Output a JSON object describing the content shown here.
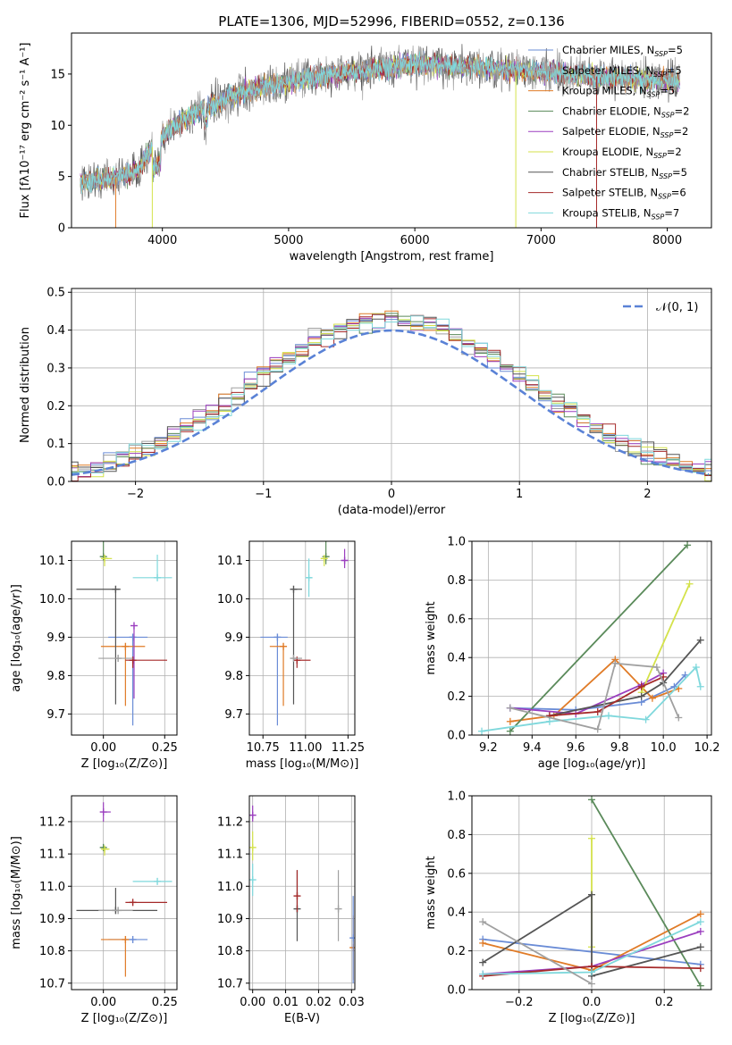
{
  "figure": {
    "title": "PLATE=1306, MJD=52996, FIBERID=0552, z=0.136"
  },
  "models": [
    {
      "name": "Chabrier MILES",
      "nssp": "5",
      "color": "#6a8cd6"
    },
    {
      "name": "Salpeter MILES",
      "nssp": "5",
      "color": "#a0a0a0"
    },
    {
      "name": "Kroupa MILES",
      "nssp": "5",
      "color": "#e07b27"
    },
    {
      "name": "Chabrier ELODIE",
      "nssp": "2",
      "color": "#5a8a5a"
    },
    {
      "name": "Salpeter ELODIE",
      "nssp": "2",
      "color": "#9b3fbf"
    },
    {
      "name": "Kroupa ELODIE",
      "nssp": "2",
      "color": "#d4e24a"
    },
    {
      "name": "Chabrier STELIB",
      "nssp": "5",
      "color": "#555555"
    },
    {
      "name": "Salpeter STELIB",
      "nssp": "6",
      "color": "#a52a2a"
    },
    {
      "name": "Kroupa STELIB",
      "nssp": "7",
      "color": "#7fd8dc"
    }
  ],
  "chart_data": [
    {
      "id": "spectrum",
      "type": "line",
      "xlabel": "wavelength [Angstrom, rest frame]",
      "ylabel": "Flux [fλ10⁻¹⁷ erg cm⁻² s⁻¹ A⁻¹]",
      "xlim": [
        3280,
        8350
      ],
      "ylim": [
        0,
        19
      ],
      "xticks": [
        4000,
        5000,
        6000,
        7000,
        8000
      ],
      "yticks": [
        0,
        5,
        10,
        15
      ],
      "grid": false,
      "legend": "right",
      "continuum": {
        "x": [
          3350,
          3600,
          3800,
          3950,
          4100,
          4300,
          4500,
          4700,
          4900,
          5100,
          5400,
          5700,
          6000,
          6300,
          6600,
          6900,
          7200,
          7500,
          7800,
          8100
        ],
        "y": [
          4.5,
          4.8,
          5.5,
          8.5,
          10.0,
          11.5,
          12.5,
          13.5,
          14.0,
          14.5,
          15.0,
          15.5,
          16.0,
          15.8,
          15.5,
          15.3,
          15.0,
          14.7,
          14.5,
          14.3
        ]
      },
      "dropouts": [
        {
          "x": 3630,
          "y_low": 0,
          "model": 2
        },
        {
          "x": 3920,
          "y_low": 0,
          "model": 5
        },
        {
          "x": 6800,
          "y_low": 0,
          "model": 5
        },
        {
          "x": 7440,
          "y_low": 0,
          "model": 7
        }
      ]
    },
    {
      "id": "residuals",
      "type": "histogram",
      "xlabel": "(data-model)/error",
      "ylabel": "Normed distribution",
      "xlim": [
        -2.5,
        2.5
      ],
      "ylim": [
        0,
        0.51
      ],
      "xticks": [
        -2,
        -1,
        0,
        1,
        2
      ],
      "yticks": [
        0.0,
        0.1,
        0.2,
        0.3,
        0.4,
        0.5
      ],
      "grid": true,
      "legend": "top-right",
      "reference": {
        "name": "𝒩(0, 1)",
        "mean": 0,
        "sigma": 1,
        "color": "#5a82d6"
      },
      "bin_width": 0.1
    },
    {
      "id": "age-vs-Z",
      "type": "scatter",
      "xlabel": "Z [log₁₀(Z/Z⊙)]",
      "ylabel": "age  [log₁₀(age/yr)]",
      "xlim": [
        -0.13,
        0.3
      ],
      "ylim": [
        9.645,
        10.15
      ],
      "xticks": [
        0.0,
        0.25
      ],
      "yticks": [
        9.7,
        9.8,
        9.9,
        10.0,
        10.1
      ],
      "grid": true,
      "points": [
        {
          "model": 0,
          "x": 0.12,
          "y": 9.9,
          "xerr": [
            0.1,
            0.06
          ],
          "yerr": [
            0.23,
            0.0
          ]
        },
        {
          "model": 2,
          "x": 0.09,
          "y": 9.876,
          "xerr": [
            0.1,
            0.08
          ],
          "yerr": [
            0.155,
            0.0
          ]
        },
        {
          "model": 3,
          "x": 0.0,
          "y": 10.11,
          "xerr": [
            0.01,
            0.01
          ],
          "yerr": [
            0.01,
            0.04
          ]
        },
        {
          "model": 4,
          "x": 0.125,
          "y": 9.93,
          "xerr": [
            0.0,
            0.0
          ],
          "yerr": [
            0.19,
            0.0
          ]
        },
        {
          "model": 5,
          "x": 0.005,
          "y": 10.105,
          "xerr": [
            0.01,
            0.03
          ],
          "yerr": [
            0.02,
            0.01
          ]
        },
        {
          "model": 6,
          "x": 0.05,
          "y": 10.025,
          "xerr": [
            0.16,
            0.02
          ],
          "yerr": [
            0.3,
            0.0
          ]
        },
        {
          "model": 7,
          "x": 0.12,
          "y": 9.84,
          "xerr": [
            0.03,
            0.14
          ],
          "yerr": [
            0.02,
            0.0
          ]
        },
        {
          "model": 8,
          "x": 0.22,
          "y": 10.055,
          "xerr": [
            0.1,
            0.06
          ],
          "yerr": [
            0.0,
            0.06
          ]
        },
        {
          "model": 1,
          "x": 0.06,
          "y": 9.845,
          "xerr": [
            0.08,
            0.06
          ],
          "yerr": [
            0.0,
            0.0
          ]
        }
      ]
    },
    {
      "id": "age-vs-mass",
      "type": "scatter",
      "xlabel": "mass [log₁₀(M/M⊙)]",
      "ylabel": "",
      "xlim": [
        10.67,
        11.29
      ],
      "ylim": [
        9.645,
        10.15
      ],
      "xticks": [
        10.75,
        11.0,
        11.25
      ],
      "yticks": [
        9.7,
        9.8,
        9.9,
        10.0,
        10.1
      ],
      "grid": true,
      "points": [
        {
          "model": 0,
          "x": 10.835,
          "y": 9.9,
          "xerr": [
            0.1,
            0.06
          ],
          "yerr": [
            0.23,
            0.0
          ]
        },
        {
          "model": 2,
          "x": 10.87,
          "y": 9.876,
          "xerr": [
            0.08,
            0.0
          ],
          "yerr": [
            0.155,
            0.0
          ]
        },
        {
          "model": 3,
          "x": 11.12,
          "y": 10.11,
          "xerr": [
            0.0,
            0.0
          ],
          "yerr": [
            0.02,
            0.04
          ]
        },
        {
          "model": 4,
          "x": 11.23,
          "y": 10.1,
          "xerr": [
            0.02,
            0.02
          ],
          "yerr": [
            0.02,
            0.03
          ]
        },
        {
          "model": 5,
          "x": 11.11,
          "y": 10.105,
          "xerr": [
            0.0,
            0.02
          ],
          "yerr": [
            0.02,
            0.0
          ]
        },
        {
          "model": 6,
          "x": 10.93,
          "y": 10.025,
          "xerr": [
            0.0,
            0.05
          ],
          "yerr": [
            0.3,
            0.0
          ]
        },
        {
          "model": 7,
          "x": 10.95,
          "y": 9.84,
          "xerr": [
            0.0,
            0.08
          ],
          "yerr": [
            0.02,
            0.0
          ]
        },
        {
          "model": 8,
          "x": 11.02,
          "y": 10.055,
          "xerr": [
            0.02,
            0.02
          ],
          "yerr": [
            0.05,
            0.05
          ]
        },
        {
          "model": 1,
          "x": 10.93,
          "y": 9.845,
          "xerr": [
            0.0,
            0.05
          ],
          "yerr": [
            0.0,
            0.0
          ]
        }
      ]
    },
    {
      "id": "weight-vs-age",
      "type": "line",
      "xlabel": "age  [log₁₀(age/yr)]",
      "ylabel": "mass weight",
      "xlim": [
        9.125,
        10.22
      ],
      "ylim": [
        0,
        1.0
      ],
      "xticks": [
        9.2,
        9.4,
        9.6,
        9.8,
        10.0,
        10.2
      ],
      "yticks": [
        0.0,
        0.2,
        0.4,
        0.6,
        0.8,
        1.0
      ],
      "grid": true,
      "series": [
        {
          "model": 0,
          "x": [
            9.3,
            9.6,
            9.9,
            10.05,
            10.1
          ],
          "y": [
            0.14,
            0.13,
            0.17,
            0.25,
            0.31
          ]
        },
        {
          "model": 2,
          "x": [
            9.3,
            9.5,
            9.78,
            9.95,
            10.07
          ],
          "y": [
            0.07,
            0.1,
            0.39,
            0.19,
            0.24
          ]
        },
        {
          "model": 3,
          "x": [
            9.3,
            10.11
          ],
          "y": [
            0.02,
            0.98
          ]
        },
        {
          "model": 4,
          "x": [
            9.3,
            9.6,
            9.9,
            10.0
          ],
          "y": [
            0.14,
            0.11,
            0.26,
            0.32
          ]
        },
        {
          "model": 5,
          "x": [
            9.9,
            10.12
          ],
          "y": [
            0.22,
            0.78
          ]
        },
        {
          "model": 6,
          "x": [
            9.48,
            9.9,
            10.0,
            10.17
          ],
          "y": [
            0.1,
            0.2,
            0.27,
            0.49
          ]
        },
        {
          "model": 7,
          "x": [
            9.48,
            9.7,
            9.9,
            10.0
          ],
          "y": [
            0.1,
            0.12,
            0.25,
            0.3
          ]
        },
        {
          "model": 8,
          "x": [
            9.17,
            9.48,
            9.75,
            9.92,
            10.15,
            10.17
          ],
          "y": [
            0.02,
            0.07,
            0.1,
            0.08,
            0.35,
            0.25
          ]
        },
        {
          "model": 1,
          "x": [
            9.3,
            9.7,
            9.78,
            9.97,
            10.07
          ],
          "y": [
            0.14,
            0.03,
            0.37,
            0.35,
            0.09
          ]
        }
      ]
    },
    {
      "id": "mass-vs-Z",
      "type": "scatter",
      "xlabel": "Z [log₁₀(Z/Z⊙)]",
      "ylabel": "mass [log₁₀(M/M⊙)]",
      "xlim": [
        -0.13,
        0.3
      ],
      "ylim": [
        10.68,
        11.28
      ],
      "xticks": [
        0.0,
        0.25
      ],
      "yticks": [
        10.7,
        10.8,
        10.9,
        11.0,
        11.1,
        11.2
      ],
      "grid": true,
      "points": [
        {
          "model": 0,
          "x": 0.12,
          "y": 10.835,
          "xerr": [
            0.1,
            0.06
          ],
          "yerr": [
            0.0,
            0.0
          ]
        },
        {
          "model": 2,
          "x": 0.09,
          "y": 10.835,
          "xerr": [
            0.1,
            0.0
          ],
          "yerr": [
            0.115,
            0.0
          ]
        },
        {
          "model": 3,
          "x": 0.0,
          "y": 11.12,
          "xerr": [
            0.01,
            0.01
          ],
          "yerr": [
            0.0,
            0.0
          ]
        },
        {
          "model": 4,
          "x": 0.0,
          "y": 11.23,
          "xerr": [
            0.0,
            0.03
          ],
          "yerr": [
            0.03,
            0.03
          ]
        },
        {
          "model": 5,
          "x": 0.005,
          "y": 11.115,
          "xerr": [
            0.01,
            0.02
          ],
          "yerr": [
            0.02,
            0.0
          ]
        },
        {
          "model": 6,
          "x": 0.05,
          "y": 10.925,
          "xerr": [
            0.16,
            0.17
          ],
          "yerr": [
            0.0,
            0.07
          ]
        },
        {
          "model": 7,
          "x": 0.12,
          "y": 10.95,
          "xerr": [
            0.03,
            0.14
          ],
          "yerr": [
            0.0,
            0.0
          ]
        },
        {
          "model": 8,
          "x": 0.22,
          "y": 11.015,
          "xerr": [
            0.1,
            0.06
          ],
          "yerr": [
            0.0,
            0.0
          ]
        },
        {
          "model": 1,
          "x": 0.06,
          "y": 10.925,
          "xerr": [
            0.08,
            0.06
          ],
          "yerr": [
            0.0,
            0.0
          ]
        }
      ]
    },
    {
      "id": "mass-vs-EBV",
      "type": "scatter",
      "xlabel": "E(B-V)",
      "ylabel": "",
      "xlim": [
        -0.001,
        0.031
      ],
      "ylim": [
        10.68,
        11.28
      ],
      "xticks": [
        0.0,
        0.01,
        0.02,
        0.03
      ],
      "yticks": [
        10.7,
        10.8,
        10.9,
        11.0,
        11.1,
        11.2
      ],
      "grid": true,
      "points": [
        {
          "model": 6,
          "x": 0.0135,
          "y": 10.93,
          "xerr": [
            0.0,
            0.0
          ],
          "yerr": [
            0.1,
            0.12
          ]
        },
        {
          "model": 7,
          "x": 0.0135,
          "y": 10.97,
          "xerr": [
            0.0,
            0.0
          ],
          "yerr": [
            0.05,
            0.08
          ]
        },
        {
          "model": 1,
          "x": 0.026,
          "y": 10.93,
          "xerr": [
            0.0,
            0.0
          ],
          "yerr": [
            0.1,
            0.12
          ]
        },
        {
          "model": 2,
          "x": 0.0305,
          "y": 10.81,
          "xerr": [
            0.0,
            0.0
          ],
          "yerr": [
            0.1,
            0.1
          ]
        },
        {
          "model": 0,
          "x": 0.0305,
          "y": 10.84,
          "xerr": [
            0.0,
            0.0
          ],
          "yerr": [
            0.14,
            0.13
          ]
        },
        {
          "model": 4,
          "x": 0.0,
          "y": 11.22,
          "xerr": [
            0.0,
            0.0
          ],
          "yerr": [
            0.02,
            0.03
          ]
        },
        {
          "model": 5,
          "x": 0.0,
          "y": 11.12,
          "xerr": [
            0.0,
            0.0
          ],
          "yerr": [
            0.04,
            0.05
          ]
        },
        {
          "model": 8,
          "x": 0.0,
          "y": 11.02,
          "xerr": [
            0.0,
            0.0
          ],
          "yerr": [
            0.05,
            0.05
          ]
        }
      ]
    },
    {
      "id": "weight-vs-Z",
      "type": "line",
      "xlabel": "Z [log₁₀(Z/Z⊙)]",
      "ylabel": "mass weight",
      "xlim": [
        -0.33,
        0.33
      ],
      "ylim": [
        0,
        1.0
      ],
      "xticks": [
        -0.2,
        0.0,
        0.2
      ],
      "yticks": [
        0.0,
        0.2,
        0.4,
        0.6,
        0.8,
        1.0
      ],
      "grid": true,
      "series": [
        {
          "model": 0,
          "x": [
            -0.3,
            0.3
          ],
          "y": [
            0.26,
            0.13
          ]
        },
        {
          "model": 2,
          "x": [
            -0.3,
            0.0,
            0.3
          ],
          "y": [
            0.24,
            0.1,
            0.39
          ]
        },
        {
          "model": 3,
          "x": [
            0.0,
            0.3
          ],
          "y": [
            0.98,
            0.02
          ]
        },
        {
          "model": 4,
          "x": [
            -0.3,
            0.0,
            0.3
          ],
          "y": [
            0.08,
            0.12,
            0.3
          ]
        },
        {
          "model": 5,
          "x": [
            0.0,
            0.0
          ],
          "y": [
            0.22,
            0.78
          ]
        },
        {
          "model": 6,
          "x": [
            -0.3,
            0.0,
            0.0,
            0.3
          ],
          "y": [
            0.14,
            0.49,
            0.07,
            0.22
          ]
        },
        {
          "model": 7,
          "x": [
            -0.3,
            0.0,
            0.3
          ],
          "y": [
            0.07,
            0.12,
            0.11
          ]
        },
        {
          "model": 8,
          "x": [
            -0.3,
            0.0,
            0.3
          ],
          "y": [
            0.08,
            0.09,
            0.35
          ]
        },
        {
          "model": 1,
          "x": [
            -0.3,
            0.0
          ],
          "y": [
            0.35,
            0.03
          ]
        }
      ]
    }
  ]
}
